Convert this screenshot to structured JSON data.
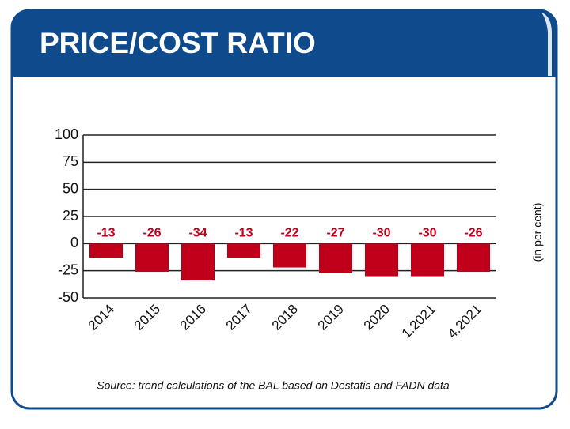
{
  "chart_data": {
    "type": "bar",
    "title": "PRICE/COST RATIO",
    "y_axis_label": "(in per cent)",
    "source": "Source: trend calculations of the BAL based on Destatis and FADN data",
    "categories": [
      "2014",
      "2015",
      "2016",
      "2017",
      "2018",
      "2019",
      "2020",
      "1.2021",
      "4.2021"
    ],
    "values": [
      -13,
      -26,
      -34,
      -13,
      -22,
      -27,
      -30,
      -30,
      -26
    ],
    "color": "#c0001a",
    "ylim": [
      -50,
      100
    ],
    "yticks": [
      -50,
      -25,
      0,
      25,
      50,
      75,
      100
    ],
    "grid": true
  }
}
